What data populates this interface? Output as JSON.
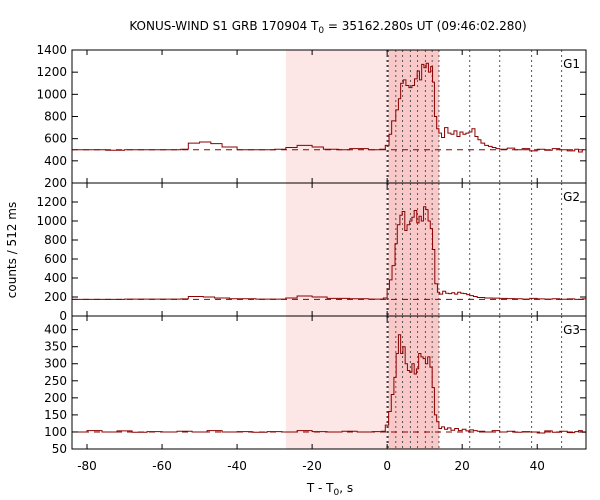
{
  "title": {
    "main": "KONUS-WIND S1 GRB 170904 T",
    "sub": "0",
    "rest": " = 35162.280s UT (09:46:02.280)"
  },
  "xlabel": {
    "main": "T - T",
    "sub": "0",
    "rest": ", s"
  },
  "ylabel": "counts / 512 ms",
  "colors": {
    "line": "#8b0000",
    "shade": "#fde6e6",
    "shade_dark": "#f9c9c9"
  },
  "chart_data": {
    "type": "line",
    "xlim": [
      -84,
      53
    ],
    "x_ticks": [
      "-80",
      "-60",
      "-40",
      "-20",
      "0",
      "20",
      "40"
    ],
    "x_tick_values": [
      -80,
      -60,
      -40,
      -20,
      0,
      20,
      40
    ],
    "background_interval": [
      -27,
      0
    ],
    "spectrum_intervals": [
      0.3,
      2.3,
      4.1,
      6.2,
      8.1,
      10.2,
      12.0,
      13.8
    ],
    "dotted_lines": [
      0,
      22,
      30,
      38.5,
      46.5
    ],
    "panels": [
      {
        "name": "G1",
        "ylim": [
          200,
          1400
        ],
        "ticks": [
          "200",
          "400",
          "600",
          "800",
          "1000",
          "1200",
          "1400"
        ],
        "tick_values": [
          200,
          400,
          600,
          800,
          1000,
          1200,
          1400
        ],
        "background": 500,
        "lc": [
          [
            -84,
            500
          ],
          [
            -75,
            495
          ],
          [
            -70,
            500
          ],
          [
            -55,
            505
          ],
          [
            -53,
            560
          ],
          [
            -50,
            570
          ],
          [
            -47,
            555
          ],
          [
            -44,
            525
          ],
          [
            -40,
            500
          ],
          [
            -30,
            505
          ],
          [
            -27,
            520
          ],
          [
            -24,
            540
          ],
          [
            -20,
            525
          ],
          [
            -17,
            505
          ],
          [
            -13,
            500
          ],
          [
            -10,
            510
          ],
          [
            -5,
            500
          ],
          [
            -2,
            505
          ],
          [
            -0.5,
            540
          ],
          [
            0.5,
            640
          ],
          [
            1.2,
            760
          ],
          [
            2.3,
            860
          ],
          [
            3,
            960
          ],
          [
            3.6,
            1100
          ],
          [
            4.3,
            1130
          ],
          [
            5,
            1080
          ],
          [
            5.8,
            1060
          ],
          [
            6.6,
            1080
          ],
          [
            7.3,
            1140
          ],
          [
            8,
            1210
          ],
          [
            8.6,
            1130
          ],
          [
            9.2,
            1270
          ],
          [
            9.8,
            1240
          ],
          [
            10.4,
            1280
          ],
          [
            11,
            1200
          ],
          [
            11.6,
            1250
          ],
          [
            12.1,
            1110
          ],
          [
            12.6,
            800
          ],
          [
            13.2,
            690
          ],
          [
            13.8,
            650
          ],
          [
            14.5,
            610
          ],
          [
            15.3,
            700
          ],
          [
            16.2,
            650
          ],
          [
            17,
            640
          ],
          [
            17.8,
            670
          ],
          [
            18.6,
            620
          ],
          [
            19.4,
            660
          ],
          [
            20.2,
            640
          ],
          [
            21,
            650
          ],
          [
            21.8,
            660
          ],
          [
            22.6,
            690
          ],
          [
            23.4,
            620
          ],
          [
            24.2,
            590
          ],
          [
            25,
            560
          ],
          [
            26,
            540
          ],
          [
            27,
            530
          ],
          [
            28,
            520
          ],
          [
            29,
            510
          ],
          [
            30,
            505
          ],
          [
            32,
            515
          ],
          [
            34,
            500
          ],
          [
            36,
            510
          ],
          [
            38,
            490
          ],
          [
            40,
            505
          ],
          [
            42,
            495
          ],
          [
            44,
            510
          ],
          [
            46,
            500
          ],
          [
            48,
            490
          ],
          [
            50,
            505
          ],
          [
            51,
            480
          ],
          [
            52,
            500
          ],
          [
            53,
            500
          ]
        ]
      },
      {
        "name": "G2",
        "ylim": [
          0,
          1400
        ],
        "ticks": [
          "0",
          "200",
          "400",
          "600",
          "800",
          "1000",
          "1200"
        ],
        "tick_values": [
          0,
          200,
          400,
          600,
          800,
          1000,
          1200
        ],
        "background": 175,
        "lc": [
          [
            -84,
            175
          ],
          [
            -70,
            178
          ],
          [
            -55,
            180
          ],
          [
            -53,
            205
          ],
          [
            -49,
            200
          ],
          [
            -46,
            190
          ],
          [
            -42,
            182
          ],
          [
            -35,
            178
          ],
          [
            -27,
            190
          ],
          [
            -24,
            210
          ],
          [
            -20,
            200
          ],
          [
            -16,
            185
          ],
          [
            -10,
            182
          ],
          [
            -5,
            178
          ],
          [
            -1,
            190
          ],
          [
            0,
            280
          ],
          [
            0.6,
            380
          ],
          [
            1.3,
            530
          ],
          [
            2.1,
            760
          ],
          [
            2.7,
            960
          ],
          [
            3.4,
            1060
          ],
          [
            4,
            1100
          ],
          [
            4.7,
            900
          ],
          [
            5.3,
            960
          ],
          [
            6,
            1000
          ],
          [
            6.6,
            1040
          ],
          [
            7.2,
            1110
          ],
          [
            7.9,
            980
          ],
          [
            8.5,
            1050
          ],
          [
            9.1,
            1000
          ],
          [
            9.7,
            1150
          ],
          [
            10.3,
            1120
          ],
          [
            10.9,
            1000
          ],
          [
            11.5,
            920
          ],
          [
            12.1,
            700
          ],
          [
            12.7,
            340
          ],
          [
            13.4,
            250
          ],
          [
            14,
            230
          ],
          [
            14.8,
            260
          ],
          [
            15.6,
            240
          ],
          [
            16.4,
            235
          ],
          [
            17.2,
            245
          ],
          [
            18,
            230
          ],
          [
            18.8,
            250
          ],
          [
            19.6,
            240
          ],
          [
            20.4,
            235
          ],
          [
            21.2,
            225
          ],
          [
            22,
            215
          ],
          [
            23,
            205
          ],
          [
            24,
            195
          ],
          [
            26,
            190
          ],
          [
            28,
            188
          ],
          [
            30,
            185
          ],
          [
            32,
            183
          ],
          [
            34,
            182
          ],
          [
            36,
            178
          ],
          [
            38,
            185
          ],
          [
            40,
            180
          ],
          [
            42,
            178
          ],
          [
            44,
            182
          ],
          [
            46,
            176
          ],
          [
            48,
            180
          ],
          [
            50,
            175
          ],
          [
            52,
            180
          ],
          [
            53,
            180
          ]
        ]
      },
      {
        "name": "G3",
        "ylim": [
          50,
          440
        ],
        "ticks": [
          "50",
          "100",
          "150",
          "200",
          "250",
          "300",
          "350",
          "400"
        ],
        "tick_values": [
          50,
          100,
          150,
          200,
          250,
          300,
          350,
          400
        ],
        "background": 100,
        "lc": [
          [
            -84,
            100
          ],
          [
            -80,
            104
          ],
          [
            -76,
            100
          ],
          [
            -72,
            103
          ],
          [
            -68,
            99
          ],
          [
            -64,
            101
          ],
          [
            -60,
            100
          ],
          [
            -56,
            102
          ],
          [
            -52,
            100
          ],
          [
            -48,
            104
          ],
          [
            -44,
            100
          ],
          [
            -40,
            101
          ],
          [
            -36,
            99
          ],
          [
            -32,
            101
          ],
          [
            -28,
            100
          ],
          [
            -24,
            104
          ],
          [
            -20,
            101
          ],
          [
            -16,
            100
          ],
          [
            -12,
            102
          ],
          [
            -8,
            100
          ],
          [
            -4,
            101
          ],
          [
            -1.5,
            102
          ],
          [
            -0.5,
            120
          ],
          [
            0.4,
            160
          ],
          [
            1.1,
            210
          ],
          [
            1.8,
            260
          ],
          [
            2.4,
            330
          ],
          [
            3,
            385
          ],
          [
            3.6,
            330
          ],
          [
            4.2,
            350
          ],
          [
            4.8,
            300
          ],
          [
            5.4,
            280
          ],
          [
            6,
            275
          ],
          [
            6.6,
            300
          ],
          [
            7.2,
            270
          ],
          [
            7.8,
            285
          ],
          [
            8.4,
            330
          ],
          [
            9,
            320
          ],
          [
            9.6,
            315
          ],
          [
            10.2,
            300
          ],
          [
            10.8,
            320
          ],
          [
            11.4,
            290
          ],
          [
            12,
            230
          ],
          [
            12.6,
            150
          ],
          [
            13.2,
            130
          ],
          [
            13.8,
            110
          ],
          [
            14.5,
            115
          ],
          [
            15.3,
            108
          ],
          [
            16.1,
            112
          ],
          [
            17,
            105
          ],
          [
            18,
            110
          ],
          [
            19,
            104
          ],
          [
            20,
            108
          ],
          [
            21,
            103
          ],
          [
            22,
            106
          ],
          [
            23,
            104
          ],
          [
            24,
            102
          ],
          [
            26,
            100
          ],
          [
            28,
            104
          ],
          [
            30,
            100
          ],
          [
            32,
            102
          ],
          [
            34,
            99
          ],
          [
            36,
            101
          ],
          [
            38,
            100
          ],
          [
            40,
            97
          ],
          [
            42,
            103
          ],
          [
            44,
            99
          ],
          [
            46,
            102
          ],
          [
            48,
            98
          ],
          [
            50,
            101
          ],
          [
            51,
            104
          ],
          [
            52,
            99
          ],
          [
            53,
            100
          ]
        ]
      }
    ]
  }
}
